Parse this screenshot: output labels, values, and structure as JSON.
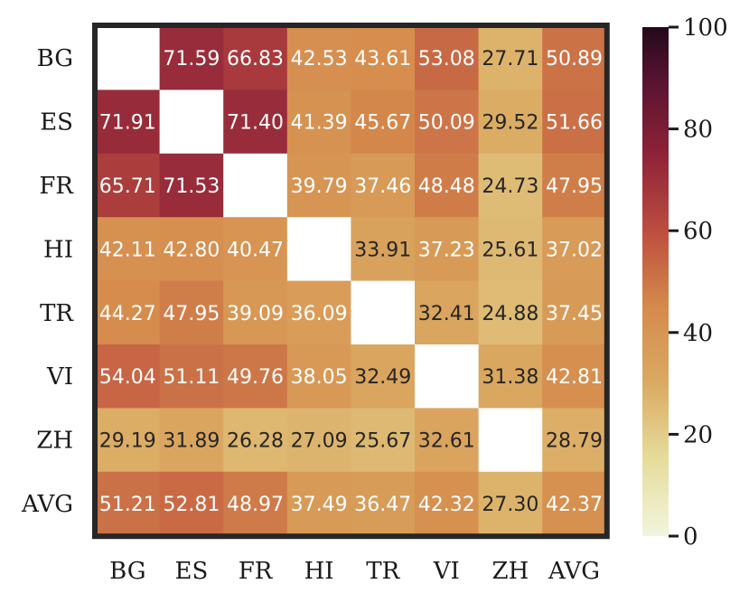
{
  "chart_data": {
    "type": "heatmap",
    "rows": [
      "BG",
      "ES",
      "FR",
      "HI",
      "TR",
      "VI",
      "ZH",
      "AVG"
    ],
    "columns": [
      "BG",
      "ES",
      "FR",
      "HI",
      "TR",
      "VI",
      "ZH",
      "AVG"
    ],
    "values": [
      [
        null,
        71.59,
        66.83,
        42.53,
        43.61,
        53.08,
        27.71,
        50.89
      ],
      [
        71.91,
        null,
        71.4,
        41.39,
        45.67,
        50.09,
        29.52,
        51.66
      ],
      [
        65.71,
        71.53,
        null,
        39.79,
        37.46,
        48.48,
        24.73,
        47.95
      ],
      [
        42.11,
        42.8,
        40.47,
        null,
        33.91,
        37.23,
        25.61,
        37.02
      ],
      [
        44.27,
        47.95,
        39.09,
        36.09,
        null,
        32.41,
        24.88,
        37.45
      ],
      [
        54.04,
        51.11,
        49.76,
        38.05,
        32.49,
        null,
        31.38,
        42.81
      ],
      [
        29.19,
        31.89,
        26.28,
        27.09,
        25.67,
        32.61,
        null,
        28.79
      ],
      [
        51.21,
        52.81,
        48.97,
        37.49,
        36.47,
        42.32,
        27.3,
        42.37
      ]
    ],
    "colorbar": {
      "range": [
        0,
        100
      ],
      "ticks": [
        0,
        20,
        40,
        60,
        80,
        100
      ],
      "colormap": "sequential cream-to-dark-burgundy",
      "stops": [
        {
          "v": 0,
          "color": "#f1f5dc"
        },
        {
          "v": 15,
          "color": "#e6dd9c"
        },
        {
          "v": 30,
          "color": "#dbaa62"
        },
        {
          "v": 45,
          "color": "#d58a4c"
        },
        {
          "v": 60,
          "color": "#bd4d3f"
        },
        {
          "v": 75,
          "color": "#8e2238"
        },
        {
          "v": 90,
          "color": "#561230"
        },
        {
          "v": 100,
          "color": "#230a1a"
        }
      ]
    },
    "diagonal_masked": true,
    "border_color": "#262626"
  }
}
